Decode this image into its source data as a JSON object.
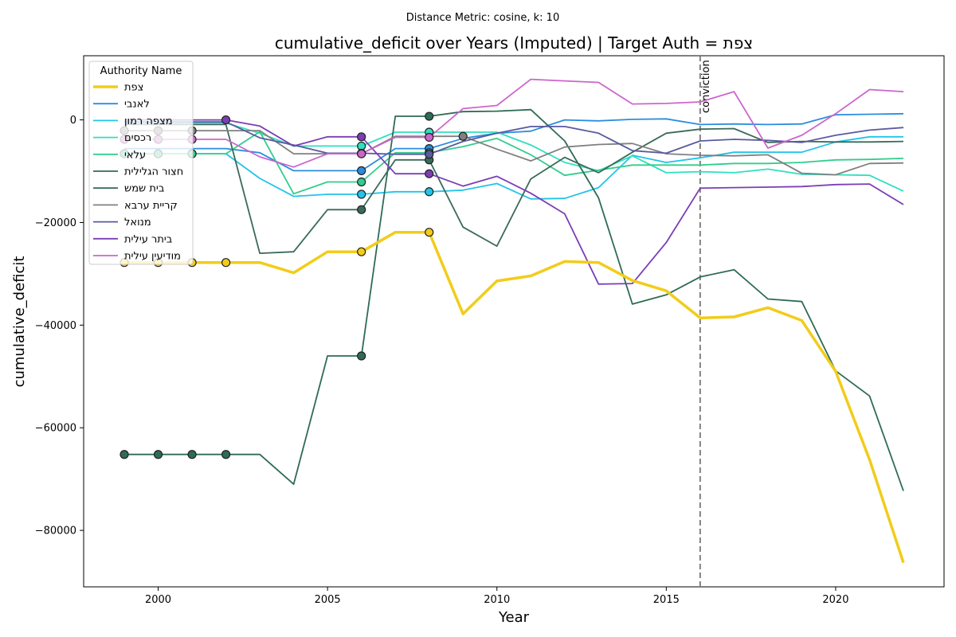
{
  "chart_data": {
    "type": "line",
    "suptitle": "Distance Metric: cosine, k: 10",
    "title": "cumulative_deficit over Years (Imputed) | Target Auth = צפת",
    "xlabel": "Year",
    "ylabel": "cumulative_deficit",
    "xlim": [
      1997.8,
      2023.2
    ],
    "ylim": [
      -91000,
      12500
    ],
    "xticks": [
      2000,
      2005,
      2010,
      2015,
      2020
    ],
    "yticks": [
      0,
      -20000,
      -40000,
      -60000,
      -80000
    ],
    "ytick_labels": [
      "0",
      "−20000",
      "−40000",
      "−60000",
      "−80000"
    ],
    "grid": false,
    "legend": {
      "title": "Authority Name",
      "position": "top-left"
    },
    "vline": {
      "x": 2016,
      "label": "conviction",
      "color": "#777777"
    },
    "x": [
      1999,
      2000,
      2001,
      2002,
      2003,
      2004,
      2005,
      2006,
      2007,
      2008,
      2009,
      2010,
      2011,
      2012,
      2013,
      2014,
      2015,
      2016,
      2017,
      2018,
      2019,
      2020,
      2021,
      2022
    ],
    "series": [
      {
        "name": "צפת",
        "color": "#f2cc1a",
        "width": 3.5,
        "values": [
          -27800,
          -27800,
          -27800,
          -27800,
          -27800,
          -29800,
          -25700,
          -25700,
          -21900,
          -21900,
          -37800,
          -31400,
          -30400,
          -27600,
          -27800,
          -31300,
          -33300,
          -38600,
          -38400,
          -36600,
          -39100,
          -49000,
          -66200,
          -86300
        ],
        "imputed": [
          1999,
          2000,
          2001,
          2002,
          2006,
          2008
        ]
      },
      {
        "name": "לאנבי",
        "color": "#2a8de0",
        "width": 1.8,
        "values": [
          -5600,
          -5600,
          -5600,
          -5600,
          -6400,
          -9900,
          -9900,
          -9900,
          -5600,
          -5600,
          -3600,
          -2600,
          -2200,
          0,
          -200,
          100,
          200,
          -900,
          -800,
          -900,
          -800,
          1000,
          1100,
          1200
        ],
        "imputed": [
          2006,
          2008
        ]
      },
      {
        "name": "מצפה רמון",
        "color": "#22c4e8",
        "width": 1.8,
        "values": [
          -6600,
          -6600,
          -6600,
          -6600,
          -11400,
          -14900,
          -14500,
          -14500,
          -14000,
          -14000,
          -13700,
          -12400,
          -15400,
          -15300,
          -13200,
          -6900,
          -8300,
          -7400,
          -6300,
          -6300,
          -6300,
          -4300,
          -3300,
          -3300
        ],
        "imputed": [
          1999,
          2000,
          2001,
          2006,
          2008
        ]
      },
      {
        "name": "רכסים",
        "color": "#2ee0c0",
        "width": 1.8,
        "values": [
          -600,
          -600,
          -600,
          -600,
          -2600,
          -5100,
          -5100,
          -5100,
          -2400,
          -2400,
          -2400,
          -2400,
          -4900,
          -8300,
          -9900,
          -7000,
          -10300,
          -10100,
          -10300,
          -9600,
          -10600,
          -10700,
          -10800,
          -13900
        ],
        "imputed": [
          2006,
          2008
        ]
      },
      {
        "name": "עלאי",
        "color": "#32cd8e",
        "width": 1.8,
        "values": [
          -6600,
          -6600,
          -6600,
          -6600,
          -2300,
          -14400,
          -12100,
          -12100,
          -6400,
          -6400,
          -5200,
          -3600,
          -6800,
          -10800,
          -9800,
          -8800,
          -8800,
          -8800,
          -8500,
          -8500,
          -8300,
          -7800,
          -7700,
          -7500
        ],
        "imputed": [
          1999,
          2000,
          2001,
          2006,
          2008
        ]
      },
      {
        "name": "חצור הגלילית",
        "color": "#2f6b55",
        "width": 1.8,
        "values": [
          -65200,
          -65200,
          -65200,
          -65200,
          -65200,
          -71000,
          -46000,
          -46000,
          700,
          700,
          1600,
          1700,
          2000,
          -4100,
          -15200,
          -35900,
          -34100,
          -30600,
          -29200,
          -34900,
          -35400,
          -48900,
          -53800,
          -72300
        ],
        "imputed": [
          1999,
          2000,
          2001,
          2002,
          2006,
          2008
        ]
      },
      {
        "name": "בית שמש",
        "color": "#3a6a5a",
        "width": 1.8,
        "values": [
          -900,
          -900,
          -900,
          -900,
          -26000,
          -25700,
          -17500,
          -17500,
          -7800,
          -7800,
          -20900,
          -24600,
          -11500,
          -7300,
          -10300,
          -6300,
          -2600,
          -1800,
          -1700,
          -4400,
          -4200,
          -4300,
          -4300,
          -4200
        ],
        "imputed": [
          2006,
          2008
        ]
      },
      {
        "name": "קריית ערבא",
        "color": "#808080",
        "width": 1.8,
        "values": [
          -2100,
          -2100,
          -2100,
          -2100,
          -2100,
          -6600,
          -6600,
          -6600,
          -3200,
          -3200,
          -3200,
          -5700,
          -8000,
          -5300,
          -4800,
          -4600,
          -6600,
          -6900,
          -7000,
          -6800,
          -10400,
          -10700,
          -8500,
          -8400
        ],
        "imputed": [
          1999,
          2000,
          2001,
          2006,
          2009
        ]
      },
      {
        "name": "מנואל",
        "color": "#5a5aa0",
        "width": 1.8,
        "values": [
          -400,
          -400,
          -400,
          -400,
          -3500,
          -4900,
          -6500,
          -6500,
          -6700,
          -6700,
          -4200,
          -2600,
          -1300,
          -1300,
          -2600,
          -6000,
          -6500,
          -4100,
          -3800,
          -4000,
          -4400,
          -3000,
          -2000,
          -1500
        ],
        "imputed": [
          2006,
          2008
        ]
      },
      {
        "name": "ביתר עילית",
        "color": "#7b3eb5",
        "width": 1.8,
        "values": [
          0,
          0,
          0,
          0,
          -1200,
          -5100,
          -3300,
          -3300,
          -10500,
          -10500,
          -12900,
          -11000,
          -14300,
          -18300,
          -32000,
          -31900,
          -23900,
          -13300,
          -13200,
          -13100,
          -13000,
          -12600,
          -12500,
          -16500
        ],
        "imputed": [
          2002,
          2006,
          2008
        ]
      },
      {
        "name": "מודיעין עילית",
        "color": "#cc66cc",
        "width": 1.8,
        "values": [
          -3800,
          -3800,
          -3800,
          -3800,
          -7200,
          -9200,
          -6600,
          -6600,
          -3400,
          -3400,
          2200,
          2800,
          7900,
          7600,
          7300,
          3100,
          3200,
          3500,
          5500,
          -5500,
          -3000,
          1200,
          5900,
          5500
        ],
        "imputed": [
          1999,
          2000,
          2001,
          2006,
          2008
        ]
      }
    ]
  }
}
